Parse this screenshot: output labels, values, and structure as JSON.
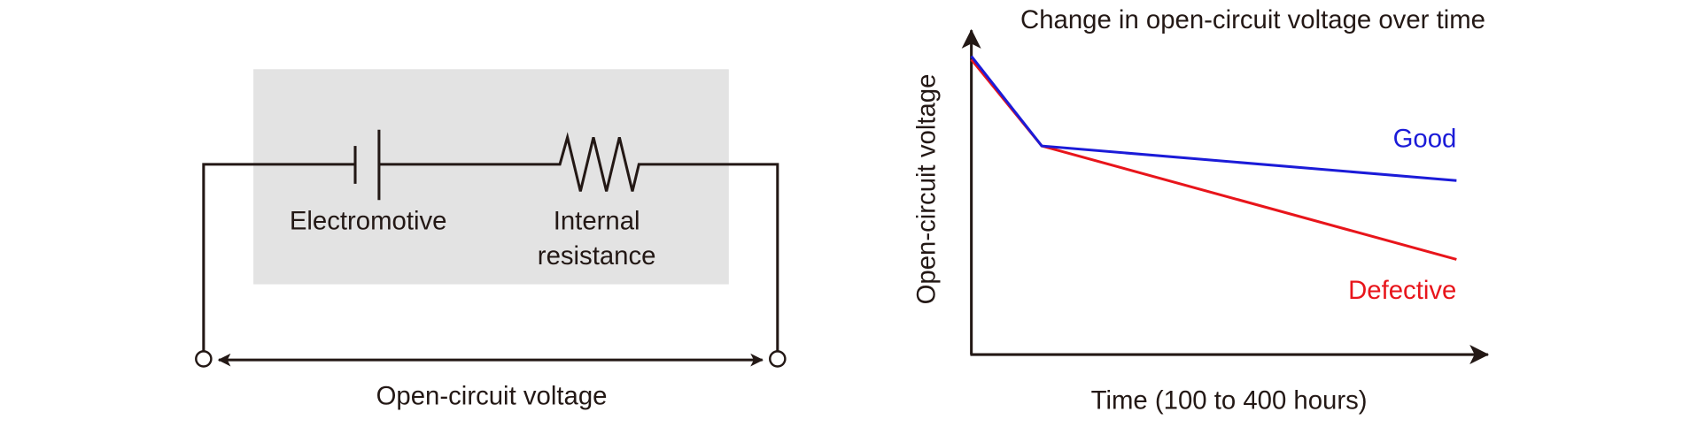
{
  "circuit": {
    "emf_label": "Electromotive",
    "resistance_label": [
      "Internal",
      "resistance"
    ],
    "voltage_label": "Open-circuit voltage"
  },
  "graph": {
    "title": "Change in open-circuit voltage over time",
    "y_label": "Open-circuit voltage",
    "x_label": "Time (100 to 400 hours)",
    "lines": [
      {
        "name": "Good"
      },
      {
        "name": "Defective"
      }
    ]
  }
}
